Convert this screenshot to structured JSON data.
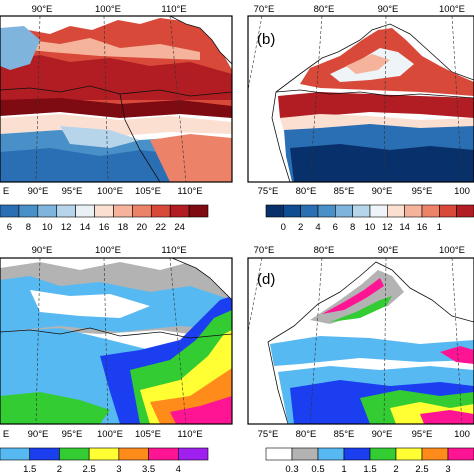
{
  "panels": {
    "a": {
      "top_lon_labels": [
        "90°E",
        "100°E",
        "110°E"
      ],
      "bottom_lon_labels": [
        "E",
        "90°E",
        "95°E",
        "100°E",
        "105°E",
        "110°E"
      ],
      "colorbar_labels": [
        "6",
        "8",
        "10",
        "12",
        "14",
        "16",
        "18",
        "20",
        "22",
        "24"
      ],
      "colorbar_colors": [
        "#2a6fb4",
        "#4a90c8",
        "#7fb5dc",
        "#b6d5ea",
        "#e9f1f7",
        "#fbe0d2",
        "#f6b39c",
        "#ec8368",
        "#d8493a",
        "#b11d22",
        "#7e0a12"
      ]
    },
    "b": {
      "label": "(b)",
      "top_lon_labels": [
        "70°E",
        "80°E",
        "90°E",
        "100°E"
      ],
      "bottom_lon_labels": [
        "75°E",
        "80°E",
        "85°E",
        "90°E",
        "95°E",
        "100"
      ],
      "colorbar_labels": [
        "0",
        "2",
        "4",
        "6",
        "8",
        "10",
        "12",
        "14",
        "16",
        "1"
      ],
      "colorbar_colors": [
        "#08306b",
        "#0f4d92",
        "#2a6fb4",
        "#4a90c8",
        "#7fb5dc",
        "#b6d5ea",
        "#eef4f8",
        "#fbe0d2",
        "#f6b39c",
        "#ec8368",
        "#d8493a",
        "#b11d22"
      ]
    },
    "c": {
      "top_lon_labels": [
        "90°E",
        "100°E",
        "110°E"
      ],
      "bottom_lon_labels": [
        "E",
        "90°E",
        "95°E",
        "100°E",
        "105°E",
        "110°E"
      ],
      "colorbar_labels": [
        "1.5",
        "2",
        "2.5",
        "3",
        "3.5",
        "4"
      ],
      "colorbar_colors": [
        "#57b9f2",
        "#1b3ff0",
        "#33cc33",
        "#ffff33",
        "#ff8c1a",
        "#ff1493",
        "#a020f0"
      ]
    },
    "d": {
      "label": "(d)",
      "top_lon_labels": [
        "70°E",
        "80°E",
        "90°E",
        "100°E"
      ],
      "bottom_lon_labels": [
        "75°E",
        "80°E",
        "85°E",
        "90°E",
        "95°E",
        "100"
      ],
      "colorbar_labels": [
        "0.3",
        "0.5",
        "1",
        "1.5",
        "2",
        "2.5",
        "3"
      ],
      "colorbar_colors": [
        "#ffffff",
        "#b3b3b3",
        "#57b9f2",
        "#1b3ff0",
        "#33cc33",
        "#ffff33",
        "#ff8c1a",
        "#ff1493"
      ]
    }
  },
  "colors": {
    "outside": "#ffffff",
    "frame": "#000000",
    "grid": "#333333"
  }
}
